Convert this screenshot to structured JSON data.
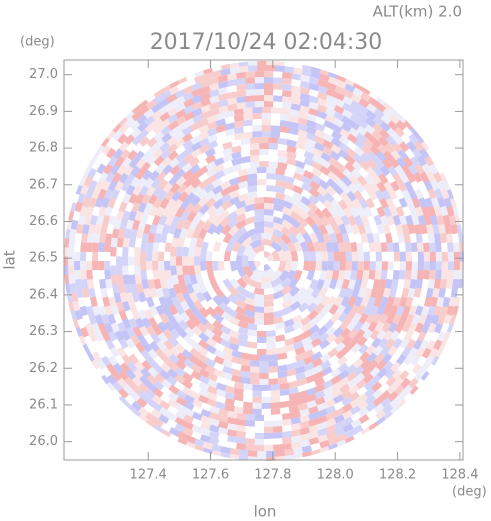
{
  "chart_data": {
    "type": "radar-ppi",
    "title": "2017/10/24 02:04:30",
    "subtitle": "ALT(km) 2.0",
    "x_label": "lon",
    "y_label": "lat",
    "x_unit": "(deg)",
    "y_unit": "(deg)",
    "xlim": [
      127.13,
      128.41
    ],
    "ylim": [
      25.95,
      27.04
    ],
    "xticks": [
      127.4,
      127.6,
      127.8,
      {
        "value": 128.0,
        "label": "128.0"
      },
      128.2,
      128.4
    ],
    "yticks": [
      {
        "value": 26.0,
        "label": "26.0"
      },
      26.1,
      26.2,
      26.3,
      26.4,
      26.5,
      26.6,
      26.7,
      26.8,
      26.9,
      {
        "value": 27.0,
        "label": "27.0"
      }
    ]
  }
}
